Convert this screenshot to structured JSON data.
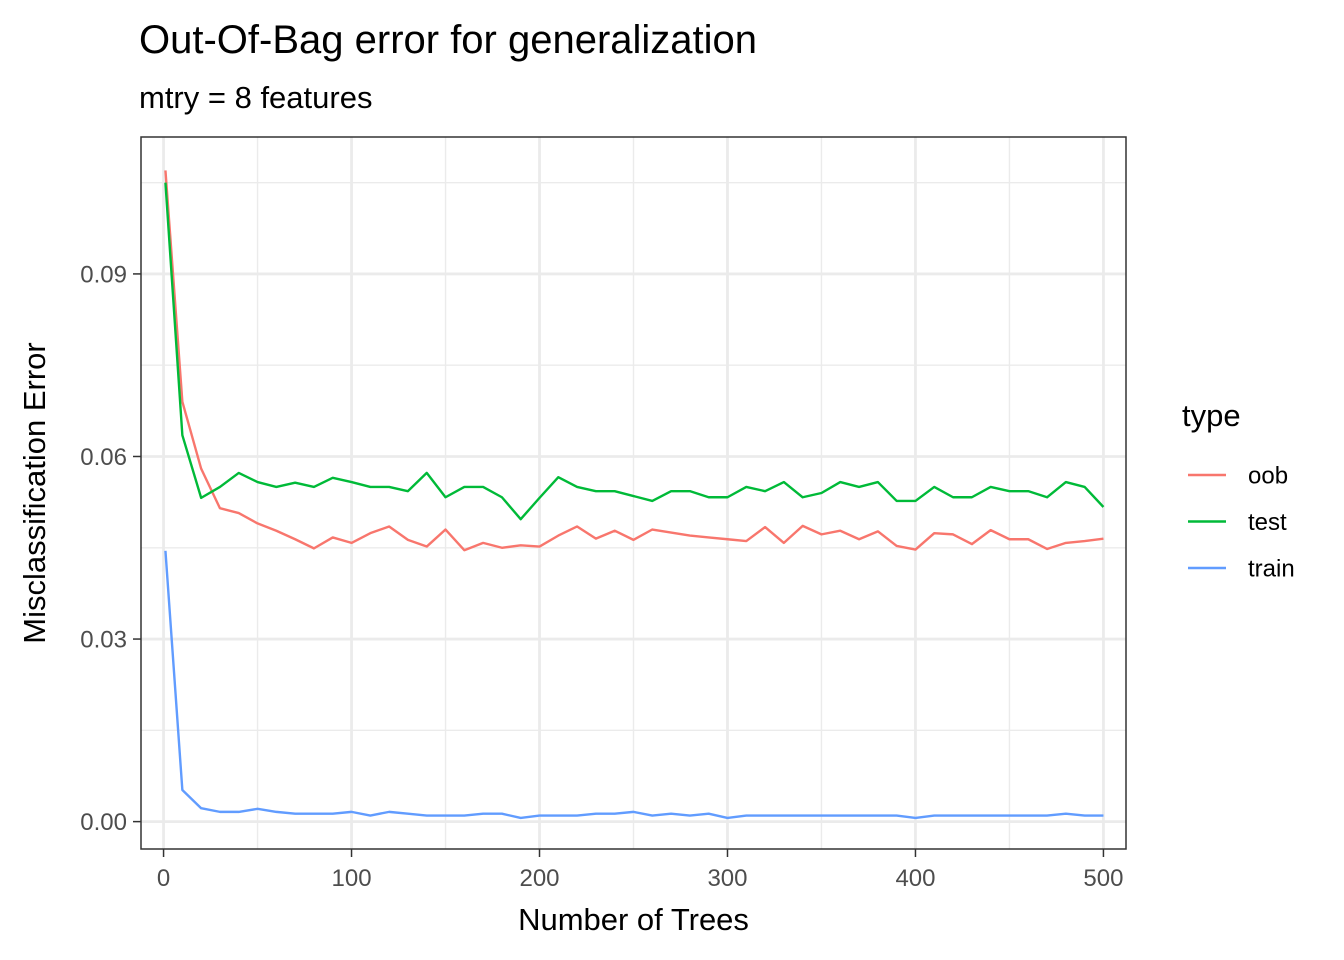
{
  "chart_data": {
    "type": "line",
    "title": "Out-Of-Bag error for generalization",
    "subtitle": "mtry = 8 features",
    "xlabel": "Number of Trees",
    "ylabel": "Misclassification Error",
    "xlim": [
      -12,
      512
    ],
    "ylim": [
      -0.0045,
      0.1125
    ],
    "x_ticks": [
      0,
      100,
      200,
      300,
      400,
      500
    ],
    "x_tick_labels": [
      "0",
      "100",
      "200",
      "300",
      "400",
      "500"
    ],
    "y_ticks": [
      0.0,
      0.03,
      0.06,
      0.09
    ],
    "y_tick_labels": [
      "0.00",
      "0.03",
      "0.06",
      "0.09"
    ],
    "grid": true,
    "legend": {
      "title": "type",
      "position": "right"
    },
    "x": [
      1,
      10,
      20,
      30,
      40,
      50,
      60,
      70,
      80,
      90,
      100,
      110,
      120,
      130,
      140,
      150,
      160,
      170,
      180,
      190,
      200,
      210,
      220,
      230,
      240,
      250,
      260,
      270,
      280,
      290,
      300,
      310,
      320,
      330,
      340,
      350,
      360,
      370,
      380,
      390,
      400,
      410,
      420,
      430,
      440,
      450,
      460,
      470,
      480,
      490,
      500
    ],
    "series": [
      {
        "name": "oob",
        "color": "#F8766D",
        "values": [
          0.107,
          0.069,
          0.058,
          0.0515,
          0.0507,
          0.049,
          0.0478,
          0.0464,
          0.0449,
          0.0467,
          0.0458,
          0.0474,
          0.0485,
          0.0463,
          0.0452,
          0.048,
          0.0446,
          0.0458,
          0.045,
          0.0454,
          0.0452,
          0.047,
          0.0485,
          0.0465,
          0.0478,
          0.0463,
          0.048,
          0.0475,
          0.047,
          0.0467,
          0.0464,
          0.0461,
          0.0484,
          0.0458,
          0.0486,
          0.0472,
          0.0478,
          0.0464,
          0.0477,
          0.0453,
          0.0447,
          0.0474,
          0.0472,
          0.0456,
          0.0479,
          0.0464,
          0.0464,
          0.0448,
          0.0458,
          0.0461,
          0.0465
        ]
      },
      {
        "name": "test",
        "color": "#00BA38",
        "values": [
          0.105,
          0.0635,
          0.0532,
          0.055,
          0.0573,
          0.0558,
          0.055,
          0.0557,
          0.055,
          0.0565,
          0.0558,
          0.055,
          0.055,
          0.0543,
          0.0573,
          0.0533,
          0.055,
          0.055,
          0.0533,
          0.0497,
          0.0532,
          0.0566,
          0.055,
          0.0543,
          0.0543,
          0.0535,
          0.0527,
          0.0543,
          0.0543,
          0.0533,
          0.0533,
          0.055,
          0.0543,
          0.0558,
          0.0533,
          0.054,
          0.0558,
          0.055,
          0.0558,
          0.0527,
          0.0527,
          0.055,
          0.0533,
          0.0533,
          0.055,
          0.0543,
          0.0543,
          0.0533,
          0.0558,
          0.055,
          0.0517
        ]
      },
      {
        "name": "train",
        "color": "#619CFF",
        "values": [
          0.0445,
          0.0052,
          0.0022,
          0.0016,
          0.0016,
          0.0021,
          0.0016,
          0.0013,
          0.0013,
          0.0013,
          0.0016,
          0.001,
          0.0016,
          0.0013,
          0.001,
          0.001,
          0.001,
          0.0013,
          0.0013,
          0.0006,
          0.001,
          0.001,
          0.001,
          0.0013,
          0.0013,
          0.0016,
          0.001,
          0.0013,
          0.001,
          0.0013,
          0.0006,
          0.001,
          0.001,
          0.001,
          0.001,
          0.001,
          0.001,
          0.001,
          0.001,
          0.001,
          0.0006,
          0.001,
          0.001,
          0.001,
          0.001,
          0.001,
          0.001,
          0.001,
          0.0013,
          0.001,
          0.001
        ]
      }
    ]
  }
}
